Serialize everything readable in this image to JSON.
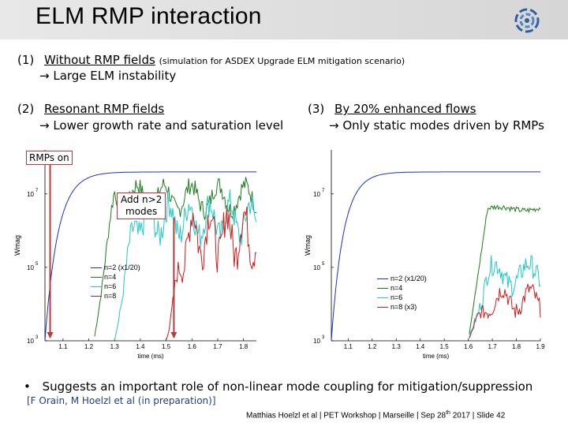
{
  "title": "ELM RMP interaction",
  "item1": {
    "number": "(1)",
    "heading": "Without RMP fields",
    "note": "(simulation for ASDEX Upgrade ELM mitigation scenario)",
    "result": "→ Large ELM instability"
  },
  "item2": {
    "number": "(2)",
    "heading": "Resonant RMP fields",
    "result": "→ Lower growth rate and saturation level"
  },
  "item3": {
    "number": "(3)",
    "heading": "By 20% enhanced flows",
    "result": "→ Only static modes driven by RMPs"
  },
  "annotations": {
    "rmps_on": "RMPs on",
    "add_modes_line1": "Add n>2",
    "add_modes_line2": "modes"
  },
  "bullet": "Suggests an important role of non-linear mode coupling for mitigation/suppression",
  "reference": "[F Orain, M Hoelzl et al (in preparation)]",
  "citation_prefix": "Matthias Hoelzl et al | PET Workshop | Marseille | Sep 28",
  "citation_sup": "th",
  "citation_suffix": " 2017 | Slide 42",
  "colors": {
    "n2": "#1c30c8",
    "n4": "#1e7a1e",
    "n6": "#22c8c8",
    "n8": "#c81e1e",
    "arrow": "#b83a3a",
    "reference": "#1f3f8a"
  },
  "chart_data": [
    {
      "type": "line",
      "xlabel": "time (ms)",
      "ylabel": "Wmag",
      "yscale": "log",
      "xlim": [
        1.03,
        1.85
      ],
      "x_ticks": [
        "1.1",
        "1.2",
        "1.3",
        "1.4",
        "1.5",
        "1.6",
        "1.7",
        "1.8"
      ],
      "y_ticks": [
        {
          "base": "10",
          "exp": "3"
        },
        {
          "base": "10",
          "exp": "5"
        },
        {
          "base": "10",
          "exp": "7"
        }
      ],
      "series": [
        {
          "name": "n=2 (x1/20)",
          "color": "#1c30c8"
        },
        {
          "name": "n=4",
          "color": "#1e7a1e"
        },
        {
          "name": "n=6",
          "color": "#22c8c8"
        },
        {
          "name": "n=8",
          "color": "#c81e1e"
        }
      ]
    },
    {
      "type": "line",
      "xlabel": "time (ms)",
      "ylabel": "Wmag",
      "yscale": "log",
      "xlim": [
        1.03,
        1.9
      ],
      "x_ticks": [
        "1.1",
        "1.2",
        "1.3",
        "1.4",
        "1.5",
        "1.6",
        "1.7",
        "1.8",
        "1.9"
      ],
      "y_ticks": [
        {
          "base": "10",
          "exp": "3"
        },
        {
          "base": "10",
          "exp": "5"
        },
        {
          "base": "10",
          "exp": "7"
        }
      ],
      "series": [
        {
          "name": "n=2 (x1/20)",
          "color": "#1c30c8"
        },
        {
          "name": "n=4",
          "color": "#1e7a1e"
        },
        {
          "name": "n=6",
          "color": "#22c8c8"
        },
        {
          "name": "n=8 (x3)",
          "color": "#c81e1e"
        }
      ]
    }
  ]
}
